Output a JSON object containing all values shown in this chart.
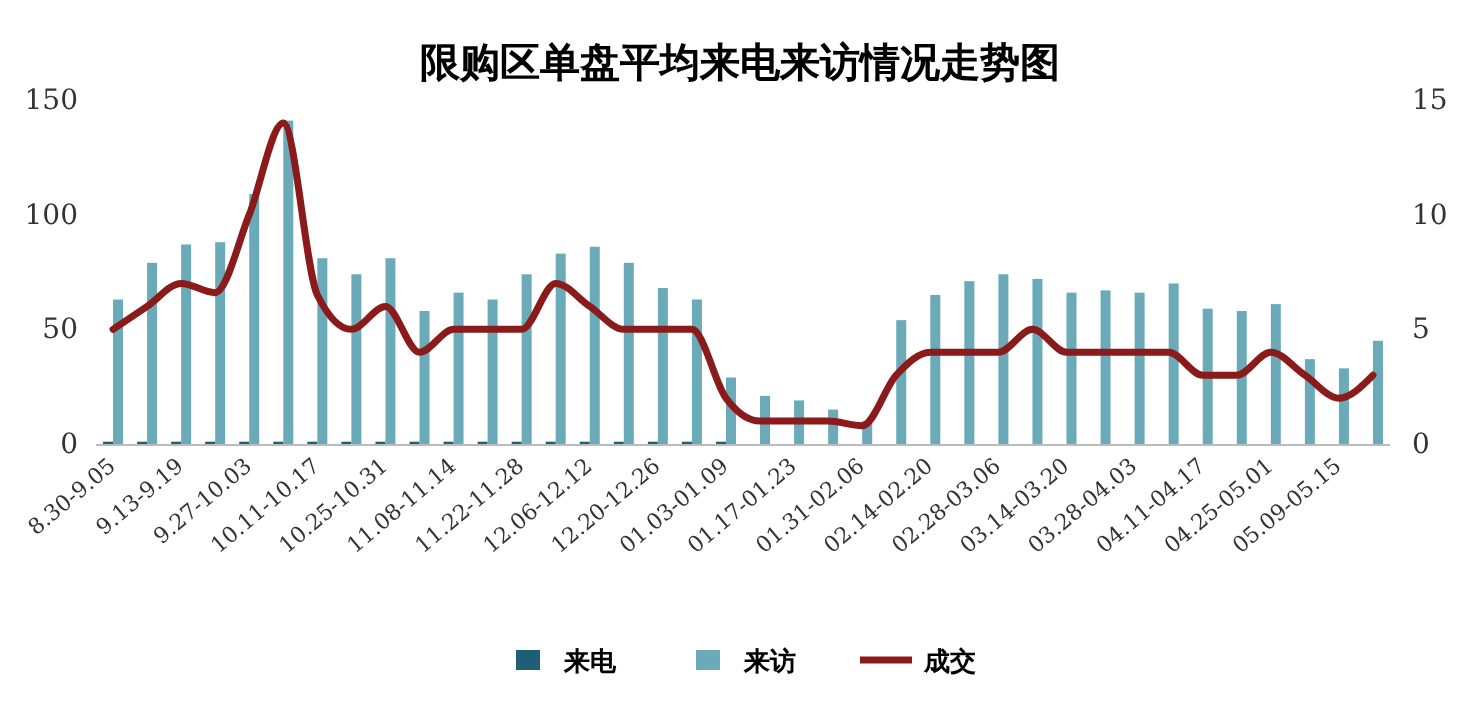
{
  "chart_data": {
    "type": "bar",
    "title": "限购区单盘平均来电来访情况走势图",
    "categories": [
      "8.30-9.05",
      null,
      "9.13-9.19",
      null,
      "9.27-10.03",
      null,
      "10.11-10.17",
      null,
      "10.25-10.31",
      null,
      "11.08-11.14",
      null,
      "11.22-11.28",
      null,
      "12.06-12.12",
      null,
      "12.20-12.26",
      null,
      "01.03-01.09",
      null,
      "01.17-01.23",
      null,
      "01.31-02.06",
      null,
      "02.14-02.20",
      null,
      "02.28-03.06",
      null,
      "03.14-03.20",
      null,
      "03.28-04.03",
      null,
      "04.11-04.17",
      null,
      "04.25-05.01",
      null,
      "05.09-05.15",
      null
    ],
    "series": [
      {
        "name": "来电",
        "color": "#1f5f75",
        "values": [
          1,
          1,
          1,
          1,
          1,
          1,
          1,
          1,
          1,
          1,
          1,
          1,
          1,
          1,
          1,
          1,
          1,
          1,
          1,
          null,
          null,
          null,
          null,
          null,
          null,
          null,
          null,
          null,
          null,
          null,
          null,
          null,
          null,
          null,
          null,
          null,
          null,
          null
        ]
      },
      {
        "name": "来访",
        "color": "#6aaab9",
        "values": [
          63,
          79,
          87,
          88,
          109,
          141,
          81,
          74,
          81,
          58,
          66,
          63,
          74,
          83,
          86,
          79,
          68,
          63,
          29,
          21,
          19,
          15,
          10,
          54,
          65,
          71,
          74,
          72,
          66,
          67,
          66,
          70,
          59,
          58,
          61,
          37,
          33,
          45
        ]
      },
      {
        "name": "成交",
        "type": "line",
        "axis": "y2",
        "color": "#8b1a1a",
        "values": [
          5,
          6,
          7,
          6.6,
          10,
          14,
          6.5,
          5,
          6,
          4,
          5,
          5,
          5,
          7,
          6,
          5,
          5,
          5,
          2,
          1,
          1,
          1,
          0.8,
          3,
          4,
          4,
          4,
          5,
          4,
          4,
          4,
          4,
          3,
          3,
          4,
          3,
          2,
          3
        ]
      }
    ],
    "ylim": [
      0,
      150
    ],
    "yticks": [
      0,
      50,
      100,
      150
    ],
    "y2lim": [
      0,
      15
    ],
    "y2ticks": [
      0,
      5,
      10,
      15
    ],
    "legend": "bottom",
    "grid": false,
    "line_style": "solid",
    "marker": "none"
  }
}
